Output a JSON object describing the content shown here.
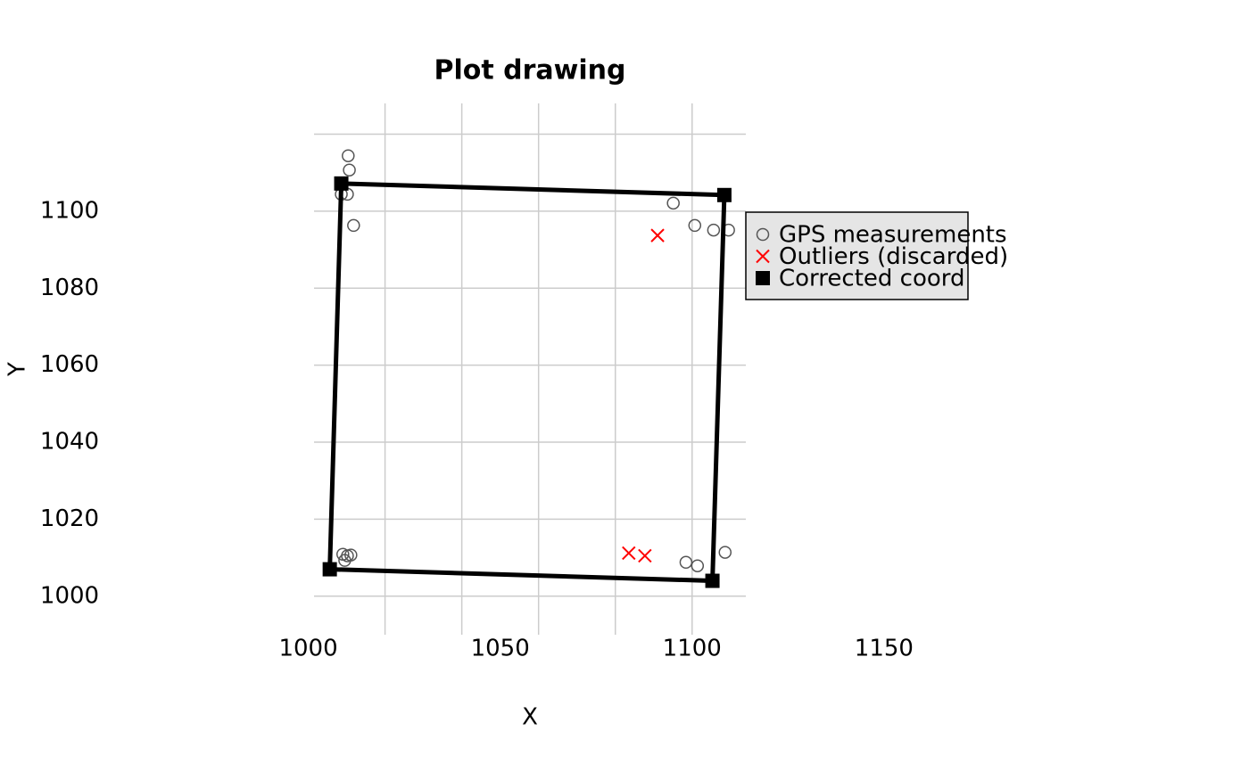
{
  "chart_data": {
    "type": "scatter",
    "title": "Plot drawing",
    "xlabel": "X",
    "ylabel": "Y",
    "xlim": [
      1001.5,
      1114
    ],
    "ylim": [
      990,
      1128
    ],
    "xticks": [
      1000,
      1050,
      1100,
      1150
    ],
    "yticks": [
      1000,
      1020,
      1040,
      1060,
      1080,
      1100
    ],
    "grid": true,
    "xgrid": [
      1020,
      1040,
      1060,
      1080,
      1100
    ],
    "ygrid": [
      1000,
      1020,
      1040,
      1060,
      1080,
      1100,
      1120
    ],
    "legend": "right",
    "series": [
      {
        "name": "GPS measurements",
        "color": "#555555",
        "marker": "circle",
        "x": [
          1010.4,
          1010.7,
          1010.2,
          1008.6,
          1011.8,
          1095.1,
          1100.7,
          1105.6,
          1109.5,
          1009.0,
          1009.5,
          1010.2,
          1011.1,
          1098.4,
          1101.4,
          1108.6
        ],
        "y": [
          1114.4,
          1110.7,
          1104.4,
          1104.4,
          1096.3,
          1102.1,
          1096.3,
          1095.1,
          1095.1,
          1010.9,
          1009.3,
          1010.5,
          1010.7,
          1008.8,
          1007.9,
          1011.4
        ]
      },
      {
        "name": "Outliers (discarded)",
        "color": "#ff0000",
        "marker": "x",
        "x": [
          1091.0,
          1083.5,
          1087.7
        ],
        "y": [
          1093.7,
          1011.2,
          1010.5
        ]
      },
      {
        "name": "Corrected coord",
        "color": "#000000",
        "marker": "square",
        "closed_line": true,
        "x": [
          1008.6,
          1108.4,
          1105.3,
          1005.6
        ],
        "y": [
          1107.2,
          1104.2,
          1004.0,
          1007.0
        ]
      }
    ]
  }
}
